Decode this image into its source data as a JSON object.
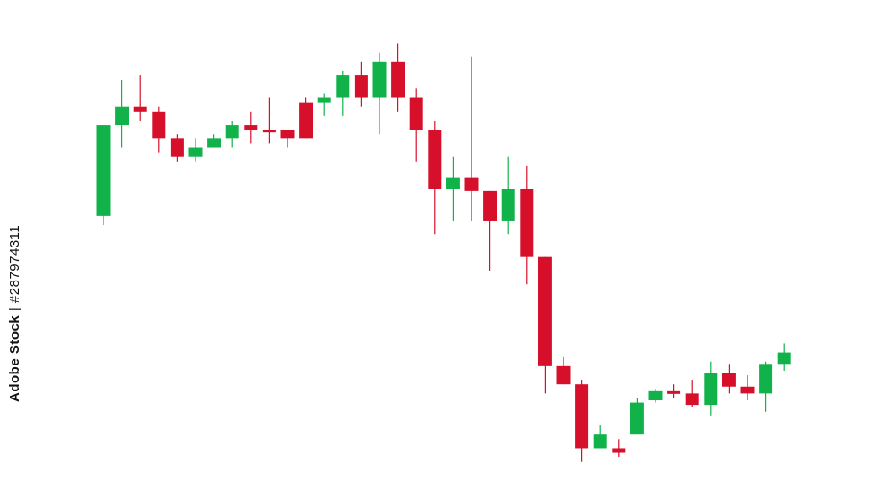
{
  "watermark": {
    "brand": "Adobe Stock",
    "separator": " | ",
    "id": "#287974311"
  },
  "colors": {
    "bull": "#12b24b",
    "bear": "#d6102b",
    "background": "#ffffff"
  },
  "chart_data": {
    "type": "candlestick",
    "title": "",
    "xlabel": "",
    "ylabel": "",
    "grid": false,
    "legend": "none",
    "ylim": [
      0,
      100
    ],
    "candles": [
      {
        "o": 57.0,
        "h": 77.0,
        "l": 55.0,
        "c": 77.0
      },
      {
        "o": 77.0,
        "h": 87.0,
        "l": 72.0,
        "c": 81.0
      },
      {
        "o": 81.0,
        "h": 88.0,
        "l": 78.0,
        "c": 80.0
      },
      {
        "o": 80.0,
        "h": 81.0,
        "l": 71.0,
        "c": 74.0
      },
      {
        "o": 74.0,
        "h": 75.0,
        "l": 69.0,
        "c": 70.0
      },
      {
        "o": 70.0,
        "h": 74.0,
        "l": 69.0,
        "c": 72.0
      },
      {
        "o": 72.0,
        "h": 75.0,
        "l": 72.0,
        "c": 74.0
      },
      {
        "o": 74.0,
        "h": 78.0,
        "l": 72.0,
        "c": 77.0
      },
      {
        "o": 77.0,
        "h": 80.0,
        "l": 73.0,
        "c": 76.0
      },
      {
        "o": 76.0,
        "h": 83.0,
        "l": 73.0,
        "c": 75.5
      },
      {
        "o": 76.0,
        "h": 76.0,
        "l": 72.0,
        "c": 74.0
      },
      {
        "o": 82.0,
        "h": 83.0,
        "l": 74.0,
        "c": 74.0
      },
      {
        "o": 82.0,
        "h": 84.0,
        "l": 79.0,
        "c": 83.0
      },
      {
        "o": 83.0,
        "h": 89.0,
        "l": 79.0,
        "c": 88.0
      },
      {
        "o": 88.0,
        "h": 91.0,
        "l": 81.0,
        "c": 83.0
      },
      {
        "o": 83.0,
        "h": 93.0,
        "l": 75.0,
        "c": 91.0
      },
      {
        "o": 91.0,
        "h": 95.0,
        "l": 80.0,
        "c": 83.0
      },
      {
        "o": 83.0,
        "h": 85.0,
        "l": 69.0,
        "c": 76.0
      },
      {
        "o": 76.0,
        "h": 78.0,
        "l": 53.0,
        "c": 63.0
      },
      {
        "o": 63.0,
        "h": 70.0,
        "l": 56.0,
        "c": 65.5
      },
      {
        "o": 65.5,
        "h": 92.0,
        "l": 56.0,
        "c": 62.5
      },
      {
        "o": 62.5,
        "h": 62.5,
        "l": 45.0,
        "c": 56.0
      },
      {
        "o": 56.0,
        "h": 70.0,
        "l": 53.0,
        "c": 63.0
      },
      {
        "o": 63.0,
        "h": 68.0,
        "l": 42.0,
        "c": 48.0
      },
      {
        "o": 48.0,
        "h": 48.0,
        "l": 18.0,
        "c": 24.0
      },
      {
        "o": 24.0,
        "h": 26.0,
        "l": 20.0,
        "c": 20.0
      },
      {
        "o": 20.0,
        "h": 21.0,
        "l": 3.0,
        "c": 6.0
      },
      {
        "o": 6.0,
        "h": 11.0,
        "l": 6.0,
        "c": 9.0
      },
      {
        "o": 6.0,
        "h": 8.0,
        "l": 4.0,
        "c": 5.0
      },
      {
        "o": 9.0,
        "h": 17.0,
        "l": 9.0,
        "c": 16.0
      },
      {
        "o": 16.5,
        "h": 19.0,
        "l": 16.0,
        "c": 18.5
      },
      {
        "o": 18.5,
        "h": 20.0,
        "l": 17.0,
        "c": 18.0
      },
      {
        "o": 18.0,
        "h": 21.0,
        "l": 15.0,
        "c": 15.5
      },
      {
        "o": 15.5,
        "h": 25.0,
        "l": 13.0,
        "c": 22.5
      },
      {
        "o": 22.5,
        "h": 24.5,
        "l": 18.0,
        "c": 19.5
      },
      {
        "o": 19.5,
        "h": 22.0,
        "l": 16.5,
        "c": 18.0
      },
      {
        "o": 18.0,
        "h": 25.0,
        "l": 14.0,
        "c": 24.5
      },
      {
        "o": 24.5,
        "h": 29.0,
        "l": 23.0,
        "c": 27.0
      }
    ]
  }
}
